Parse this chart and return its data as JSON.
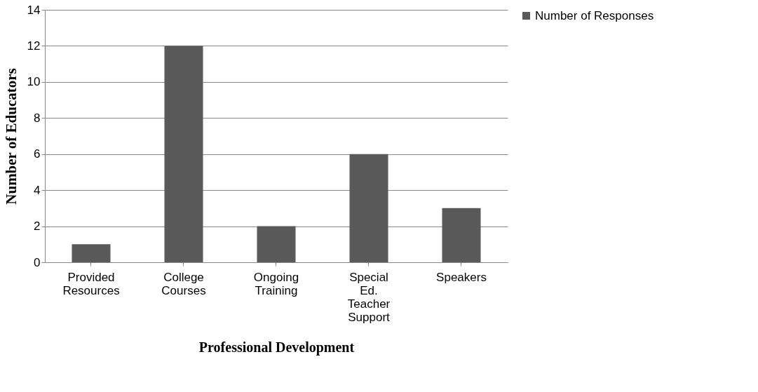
{
  "chart_data": {
    "type": "bar",
    "xlabel": "Professional Development",
    "ylabel": "Number of Educators",
    "categories": [
      "Provided Resources",
      "College Courses",
      "Ongoing Training",
      "Special Ed. Teacher Support",
      "Speakers"
    ],
    "series": [
      {
        "name": "Number of Responses",
        "color": "#595959",
        "values": [
          1,
          12,
          2,
          6,
          3
        ]
      }
    ],
    "ylim": [
      0,
      14
    ],
    "yticks": [
      0,
      2,
      4,
      6,
      8,
      10,
      12,
      14
    ],
    "grid": "y",
    "legend": "right"
  }
}
